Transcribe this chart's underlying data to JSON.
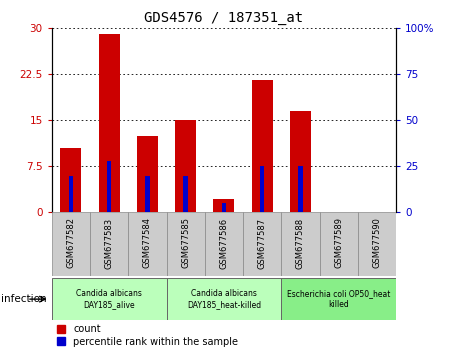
{
  "title": "GDS4576 / 187351_at",
  "samples": [
    "GSM677582",
    "GSM677583",
    "GSM677584",
    "GSM677585",
    "GSM677586",
    "GSM677587",
    "GSM677588",
    "GSM677589",
    "GSM677590"
  ],
  "counts": [
    10.5,
    29.0,
    12.5,
    15.0,
    2.2,
    21.5,
    16.5,
    0.0,
    0.0
  ],
  "percentile": [
    20.0,
    28.0,
    20.0,
    20.0,
    5.0,
    25.0,
    25.0,
    0.0,
    0.0
  ],
  "ylim_left": [
    0,
    30
  ],
  "ylim_right": [
    0,
    100
  ],
  "yticks_left": [
    0,
    7.5,
    15,
    22.5,
    30
  ],
  "yticks_right": [
    0,
    25,
    50,
    75,
    100
  ],
  "ytick_labels_left": [
    "0",
    "7.5",
    "15",
    "22.5",
    "30"
  ],
  "ytick_labels_right": [
    "0",
    "25",
    "50",
    "75",
    "100%"
  ],
  "bar_color": "#cc0000",
  "percentile_color": "#0000cc",
  "groups": [
    {
      "label": "Candida albicans\nDAY185_alive",
      "start": 0,
      "end": 2,
      "color": "#bbffbb"
    },
    {
      "label": "Candida albicans\nDAY185_heat-killed",
      "start": 3,
      "end": 5,
      "color": "#bbffbb"
    },
    {
      "label": "Escherichia coli OP50_heat\nkilled",
      "start": 6,
      "end": 8,
      "color": "#88ee88"
    }
  ],
  "infection_label": "infection",
  "legend_count_label": "count",
  "legend_percentile_label": "percentile rank within the sample",
  "tick_area_color": "#cccccc",
  "bar_width": 0.55,
  "perc_bar_width": 0.12
}
